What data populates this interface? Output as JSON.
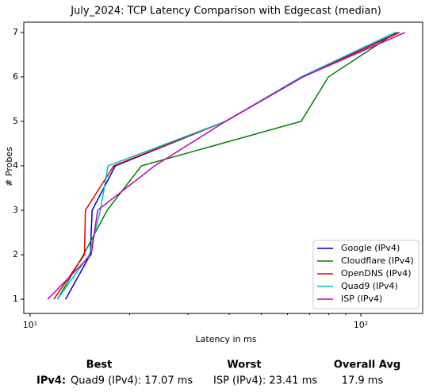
{
  "chart_data": {
    "type": "line",
    "title": "July_2024: TCP Latency Comparison with Edgecast (median)",
    "xlabel": "Latency in ms",
    "ylabel": "# Probes",
    "xscale": "log",
    "xlim": [
      9.57,
      153.8
    ],
    "xticks": [
      {
        "value": 10,
        "label": "10¹"
      },
      {
        "value": 100,
        "label": "10²"
      }
    ],
    "xminorticks": [
      20,
      30,
      40,
      50,
      60,
      70,
      80,
      90
    ],
    "ylim": [
      0.68,
      7.23
    ],
    "yticks": [
      1,
      2,
      3,
      4,
      5,
      6,
      7
    ],
    "grid": false,
    "legend": "lower right",
    "series": [
      {
        "name": "Google (IPv4)",
        "color": "#0000cc",
        "x": [
          12.8,
          15.2,
          15.4,
          18.1,
          39,
          66.8,
          130
        ],
        "values": [
          1,
          2,
          3,
          4,
          5,
          6,
          7
        ]
      },
      {
        "name": "Cloudflare (IPv4)",
        "color": "#008000",
        "x": [
          12.1,
          14.5,
          17.1,
          21.7,
          66,
          79.8,
          128
        ],
        "values": [
          1,
          2,
          3,
          4,
          5,
          6,
          7
        ]
      },
      {
        "name": "OpenDNS (IPv4)",
        "color": "#e00000",
        "x": [
          11.8,
          14.6,
          14.7,
          17.9,
          39,
          66.8,
          131
        ],
        "values": [
          1,
          2,
          3,
          4,
          5,
          6,
          7
        ]
      },
      {
        "name": "Quad9 (IPv4)",
        "color": "#00bfbf",
        "x": [
          12.1,
          15.1,
          16.3,
          17.2,
          39,
          66,
          127
        ],
        "values": [
          1,
          2,
          3,
          4,
          5,
          6,
          7
        ]
      },
      {
        "name": "ISP (IPv4)",
        "color": "#bf00bf",
        "x": [
          11.3,
          15.3,
          16.0,
          23.8,
          39,
          66.8,
          136
        ],
        "values": [
          1,
          2,
          3,
          4,
          5,
          6,
          7
        ]
      }
    ]
  },
  "summary": {
    "headers": [
      "Best",
      "Worst",
      "Overall Avg"
    ],
    "row_label": "IPv4:",
    "best": "Quad9 (IPv4): 17.07 ms",
    "worst": "ISP (IPv4): 23.41 ms",
    "avg": "17.9 ms"
  }
}
